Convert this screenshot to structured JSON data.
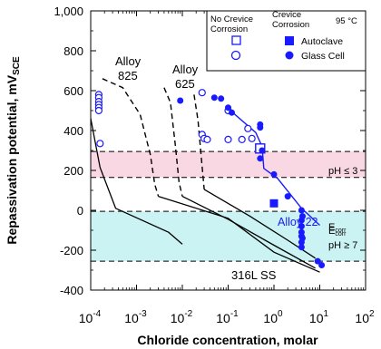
{
  "chart_data": {
    "type": "scatter",
    "xscale": "log",
    "xlim": [
      0.0001,
      100
    ],
    "ylim": [
      -400,
      1000
    ],
    "xlabel": "Chloride concentration, molar",
    "ylabel_main": "Repassivation potential, mV",
    "ylabel_sub": "SCE",
    "xticks": [
      {
        "value": 0.0001,
        "base": "10",
        "exp": "-4"
      },
      {
        "value": 0.001,
        "base": "10",
        "exp": "-3"
      },
      {
        "value": 0.01,
        "base": "10",
        "exp": "-2"
      },
      {
        "value": 0.1,
        "base": "10",
        "exp": "-1"
      },
      {
        "value": 1,
        "base": "10",
        "exp": "0"
      },
      {
        "value": 10,
        "base": "10",
        "exp": "1"
      },
      {
        "value": 100,
        "base": "10",
        "exp": "2"
      }
    ],
    "yticks": [
      {
        "value": 1000,
        "label": "1,000"
      },
      {
        "value": 800,
        "label": "800"
      },
      {
        "value": 600,
        "label": "600"
      },
      {
        "value": 400,
        "label": "400"
      },
      {
        "value": 200,
        "label": "200"
      },
      {
        "value": 0,
        "label": "0"
      },
      {
        "value": -200,
        "label": "-200"
      },
      {
        "value": -400,
        "label": "-400"
      }
    ],
    "bands": [
      {
        "y0": 165,
        "y1": 295,
        "color": "#f9d8e3"
      },
      {
        "y0": -255,
        "y1": -5,
        "color": "#ccf3f3"
      }
    ],
    "hlines": [
      295,
      165,
      -5,
      -255
    ],
    "annotations": {
      "ecorr_top": {
        "main": "E",
        "sub": "corr",
        "line2": "pH ≤ 3"
      },
      "ecorr_bottom": {
        "main": "E",
        "sub": "corr",
        "line2": "pH ≥ 7"
      },
      "alloy825": {
        "line1": "Alloy",
        "line2": "825"
      },
      "alloy625": {
        "line1": "Alloy",
        "line2": "625"
      },
      "ss316": "316L SS",
      "alloy22": "Alloy 22"
    },
    "dashed_curves": [
      {
        "name": "",
        "points": [
          [
            0.00018,
            660
          ],
          [
            0.0005,
            615
          ],
          [
            0.0012,
            480
          ],
          [
            0.002,
            280
          ],
          [
            0.0025,
            130
          ],
          [
            0.003,
            70
          ]
        ]
      },
      {
        "name": "",
        "points": [
          [
            0.004,
            615
          ],
          [
            0.0055,
            540
          ],
          [
            0.007,
            330
          ],
          [
            0.0085,
            140
          ],
          [
            0.01,
            70
          ]
        ]
      },
      {
        "name": "",
        "points": [
          [
            0.018,
            580
          ],
          [
            0.022,
            450
          ],
          [
            0.026,
            260
          ],
          [
            0.03,
            105
          ]
        ]
      }
    ],
    "solid_lines": [
      {
        "name": "",
        "points": [
          [
            0.0001,
            460
          ],
          [
            0.00016,
            215
          ],
          [
            0.00035,
            10
          ],
          [
            0.005,
            -110
          ],
          [
            0.01,
            -170
          ]
        ]
      },
      {
        "name": "",
        "points": [
          [
            0.003,
            70
          ],
          [
            0.1,
            -40
          ],
          [
            1,
            -210
          ],
          [
            10,
            -310
          ]
        ]
      },
      {
        "name": "",
        "points": [
          [
            0.01,
            70
          ],
          [
            0.1,
            -45
          ],
          [
            1,
            -175
          ],
          [
            8,
            -290
          ]
        ]
      },
      {
        "name": "",
        "points": [
          [
            0.03,
            105
          ],
          [
            0.3,
            -30
          ],
          [
            2,
            -150
          ],
          [
            8,
            -240
          ]
        ]
      }
    ],
    "alloy22_line": {
      "color": "#1a1aff",
      "points": [
        [
          0.1,
          510
        ],
        [
          0.4,
          390
        ],
        [
          0.55,
          320
        ],
        [
          0.6,
          210
        ],
        [
          1.2,
          160
        ],
        [
          4,
          10
        ],
        [
          10,
          -75
        ]
      ]
    },
    "series": [
      {
        "name": "No Crevice Corrosion",
        "marker": "open-square",
        "color": "#1a1aff",
        "x": [
          0.5
        ],
        "y": [
          310
        ]
      },
      {
        "name": "No Crevice Corrosion",
        "marker": "open-circle",
        "color": "#1a1aff",
        "x": [
          0.00015,
          0.00015,
          0.00015,
          0.00015,
          0.00015,
          0.00015,
          0.00016,
          0.027,
          0.027,
          0.03,
          0.035,
          0.1,
          0.1,
          0.2,
          0.27,
          0.33
        ],
        "y": [
          580,
          565,
          545,
          530,
          515,
          500,
          335,
          590,
          380,
          360,
          355,
          500,
          355,
          355,
          410,
          360
        ]
      },
      {
        "name": "Autoclave",
        "marker": "filled-square",
        "color": "#1a1aff",
        "x": [
          1.0
        ],
        "y": [
          35
        ]
      },
      {
        "name": "Glass Cell",
        "marker": "filled-circle",
        "color": "#1a1aff",
        "x": [
          0.009,
          0.05,
          0.07,
          0.1,
          0.12,
          0.5,
          0.5,
          0.5,
          0.55,
          1.0,
          2.0,
          4.0,
          4.0,
          4.0,
          4.0,
          4.0,
          4.0,
          4.0,
          4.2,
          4.2,
          9.0,
          11.0
        ],
        "y": [
          550,
          565,
          560,
          515,
          490,
          430,
          415,
          260,
          300,
          180,
          70,
          0,
          -50,
          -80,
          -110,
          -130,
          -160,
          -185,
          -30,
          -140,
          -255,
          -275
        ]
      }
    ],
    "legend": {
      "col1_header_line1": "No Crevice",
      "col1_header_line2": "Corrosion",
      "col2_header_line1": "Crevice",
      "col2_header_line2": "Corrosion",
      "temp": "95 °C",
      "autoclave": "Autoclave",
      "glasscell": "Glass Cell"
    }
  }
}
